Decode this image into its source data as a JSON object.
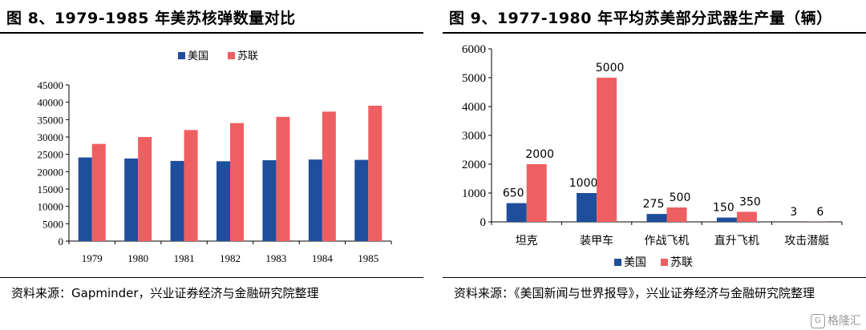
{
  "left": {
    "title": "图 8、1979-1985 年美苏核弹数量对比",
    "source": "资料来源：Gapminder，兴业证券经济与金融研究院整理"
  },
  "right": {
    "title": "图 9、1977-1980 年平均苏美部分武器生产量（辆）",
    "source": "资料来源：《美国新闻与世界报导》，兴业证券经济与金融研究院整理"
  },
  "watermark": "格隆汇",
  "chart_data": [
    {
      "type": "bar",
      "categories": [
        "1979",
        "1980",
        "1981",
        "1982",
        "1983",
        "1984",
        "1985"
      ],
      "series": [
        {
          "name": "美国",
          "color": "#1f4e9c",
          "values": [
            24100,
            23800,
            23100,
            23000,
            23300,
            23500,
            23400
          ]
        },
        {
          "name": "苏联",
          "color": "#ee5f62",
          "values": [
            28000,
            30000,
            32000,
            34000,
            35800,
            37300,
            39000
          ]
        }
      ],
      "ylim": [
        0,
        45000
      ],
      "yticks": [
        0,
        5000,
        10000,
        15000,
        20000,
        25000,
        30000,
        35000,
        40000,
        45000
      ],
      "legend_position": "top",
      "grid": false
    },
    {
      "type": "bar",
      "categories": [
        "坦克",
        "装甲车",
        "作战飞机",
        "直升飞机",
        "攻击潜艇"
      ],
      "series": [
        {
          "name": "美国",
          "color": "#1f4e9c",
          "values": [
            650,
            1000,
            275,
            150,
            3
          ]
        },
        {
          "name": "苏联",
          "color": "#ee5f62",
          "values": [
            2000,
            5000,
            500,
            350,
            6
          ]
        }
      ],
      "ylim": [
        0,
        6000
      ],
      "yticks": [
        0,
        1000,
        2000,
        3000,
        4000,
        5000,
        6000
      ],
      "data_labels": true,
      "legend_position": "bottom",
      "grid": false
    }
  ]
}
